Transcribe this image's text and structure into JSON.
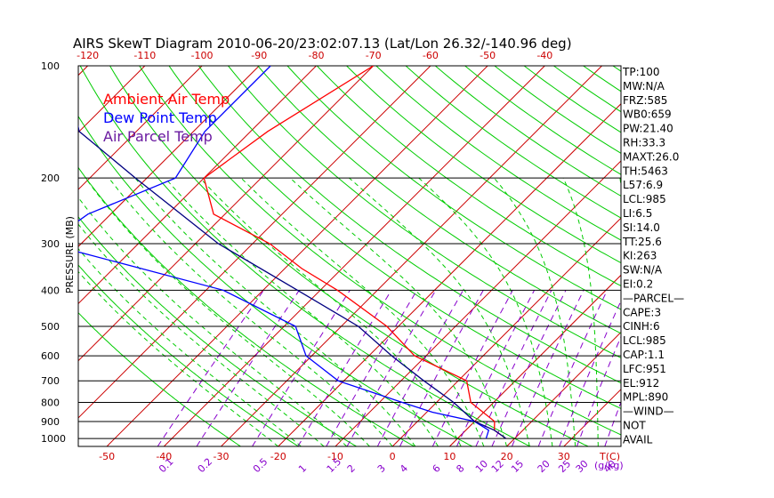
{
  "title": "AIRS SkewT Diagram 2010-06-20/23:02:07.13 (Lat/Lon 26.32/-140.96 deg)",
  "colors": {
    "ambient": "#ff0000",
    "dewpoint": "#0000ff",
    "parcel": "#000080",
    "isotherm": "#cc0000",
    "dry_adiabat": "#00cc00",
    "moist_adiabat": "#00cc00",
    "mixing_ratio": "#8800cc",
    "isobar": "#000000"
  },
  "legend": [
    {
      "label": "Ambient Air Temp",
      "color": "#ff0000"
    },
    {
      "label": "Dew Point Temp",
      "color": "#0000ff"
    },
    {
      "label": "Air Parcel Temp",
      "color": "#6a1aa0"
    }
  ],
  "side_panel": [
    "TP:100",
    "MW:N/A",
    "FRZ:585",
    "WB0:659",
    "PW:21.40",
    "RH:33.3",
    "MAXT:26.0",
    "TH:5463",
    "L57:6.9",
    "LCL:985",
    "LI:6.5",
    "SI:14.0",
    "TT:25.6",
    "KI:263",
    "SW:N/A",
    "EI:0.2",
    "—PARCEL—",
    "CAPE:3",
    "CINH:6",
    "LCL:985",
    "CAP:1.1",
    "LFC:951",
    "EL:912",
    "MPL:890",
    "—WIND—",
    "NOT",
    "AVAIL"
  ],
  "chart_data": {
    "type": "line",
    "title": "AIRS SkewT Diagram 2010-06-20/23:02:07.13 (Lat/Lon 26.32/-140.96 deg)",
    "ylabel": "PRESSURE (MB)",
    "xlabel": "T(C)",
    "y_scale": "log",
    "y_ticks": [
      100,
      200,
      300,
      400,
      500,
      600,
      700,
      800,
      900,
      1000
    ],
    "y_tick_labels": [
      "100",
      "200",
      "300",
      "400",
      "500",
      "600",
      "700",
      "800",
      "900",
      "1000"
    ],
    "ylim": [
      100,
      1050
    ],
    "top_axis_ticks": [
      -120,
      -110,
      -100,
      -90,
      -80,
      -70,
      -60,
      -50,
      -40
    ],
    "bottom_axis_ticks": [
      -50,
      -40,
      -30,
      -20,
      -10,
      0,
      10,
      20,
      30
    ],
    "xlim": [
      -55,
      40
    ],
    "mixing_ratio_labels": [
      "0.1",
      "0.2",
      "0.5",
      "1",
      "1.5",
      "2",
      "3",
      "4",
      "6",
      "8",
      "10",
      "12",
      "15",
      "20",
      "25",
      "30",
      "40"
    ],
    "mixing_ratio_unit": "(g/kg)",
    "series": [
      {
        "name": "Ambient Air Temp",
        "points": [
          [
            100,
            -70
          ],
          [
            150,
            -77
          ],
          [
            200,
            -80
          ],
          [
            250,
            -72
          ],
          [
            300,
            -57
          ],
          [
            350,
            -47
          ],
          [
            400,
            -37
          ],
          [
            500,
            -22
          ],
          [
            600,
            -12
          ],
          [
            700,
            1.5
          ],
          [
            800,
            6
          ],
          [
            900,
            13.5
          ],
          [
            950,
            15
          ],
          [
            1000,
            18.5
          ]
        ]
      },
      {
        "name": "Dew Point Temp",
        "points": [
          [
            100,
            -88
          ],
          [
            150,
            -88
          ],
          [
            200,
            -85
          ],
          [
            250,
            -94
          ],
          [
            300,
            -96
          ],
          [
            400,
            -57
          ],
          [
            500,
            -38
          ],
          [
            600,
            -31
          ],
          [
            700,
            -21
          ],
          [
            800,
            -6
          ],
          [
            850,
            1
          ],
          [
            900,
            10
          ],
          [
            950,
            14
          ],
          [
            1000,
            15
          ]
        ]
      },
      {
        "name": "Air Parcel Temp",
        "points": [
          [
            100,
            -124
          ],
          [
            150,
            -110
          ],
          [
            200,
            -92
          ],
          [
            300,
            -66
          ],
          [
            400,
            -44
          ],
          [
            500,
            -27
          ],
          [
            600,
            -16
          ],
          [
            700,
            -6
          ],
          [
            800,
            3
          ],
          [
            900,
            10
          ],
          [
            950,
            15
          ],
          [
            1000,
            18.5
          ]
        ]
      }
    ]
  }
}
